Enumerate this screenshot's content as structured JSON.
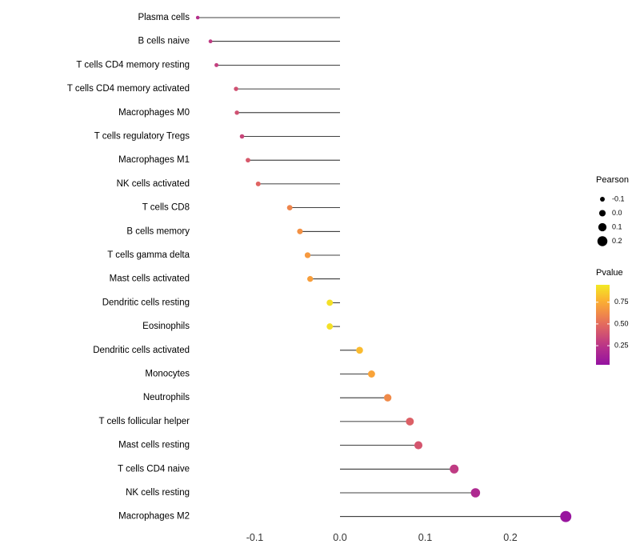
{
  "chart_data": {
    "type": "scatter",
    "subtype": "lollipop",
    "title": "",
    "xlabel": "",
    "ylabel": "",
    "xlim": [
      -0.185,
      0.3
    ],
    "grid": false,
    "legend_position": "right",
    "x_ticks": [
      -0.1,
      0.0,
      0.1,
      0.2
    ],
    "x_tick_labels": [
      "-0.1",
      "0.0",
      "0.1",
      "0.2"
    ],
    "stem_color": "#000000",
    "points": [
      {
        "label": "Plasma cells",
        "pearson": -0.167,
        "pvalue": 0.22
      },
      {
        "label": "B cells naive",
        "pearson": -0.152,
        "pvalue": 0.28
      },
      {
        "label": "T cells CD4 memory resting",
        "pearson": -0.145,
        "pvalue": 0.3
      },
      {
        "label": "T cells CD4 memory activated",
        "pearson": -0.122,
        "pvalue": 0.38
      },
      {
        "label": "Macrophages M0",
        "pearson": -0.121,
        "pvalue": 0.38
      },
      {
        "label": "T cells regulatory Tregs",
        "pearson": -0.115,
        "pvalue": 0.33
      },
      {
        "label": "Macrophages M1",
        "pearson": -0.108,
        "pvalue": 0.42
      },
      {
        "label": "NK cells activated",
        "pearson": -0.096,
        "pvalue": 0.47
      },
      {
        "label": "T cells CD8",
        "pearson": -0.059,
        "pvalue": 0.6
      },
      {
        "label": "B cells memory",
        "pearson": -0.047,
        "pvalue": 0.65
      },
      {
        "label": "T cells gamma delta",
        "pearson": -0.038,
        "pvalue": 0.68
      },
      {
        "label": "Mast cells activated",
        "pearson": -0.035,
        "pvalue": 0.7
      },
      {
        "label": "Dendritic cells resting",
        "pearson": -0.012,
        "pvalue": 0.92
      },
      {
        "label": "Eosinophils",
        "pearson": -0.012,
        "pvalue": 0.92
      },
      {
        "label": "Dendritic cells activated",
        "pearson": 0.023,
        "pvalue": 0.8
      },
      {
        "label": "Monocytes",
        "pearson": 0.037,
        "pvalue": 0.72
      },
      {
        "label": "Neutrophils",
        "pearson": 0.056,
        "pvalue": 0.62
      },
      {
        "label": "T cells follicular helper",
        "pearson": 0.082,
        "pvalue": 0.45
      },
      {
        "label": "Mast cells resting",
        "pearson": 0.092,
        "pvalue": 0.4
      },
      {
        "label": "T cells CD4 naive",
        "pearson": 0.134,
        "pvalue": 0.28
      },
      {
        "label": "NK cells resting",
        "pearson": 0.159,
        "pvalue": 0.18
      },
      {
        "label": "Macrophages M2",
        "pearson": 0.265,
        "pvalue": 0.05
      }
    ],
    "color_scale": {
      "name": "plasma",
      "stops": [
        {
          "t": 0.0,
          "color": "#8f0da4"
        },
        {
          "t": 0.25,
          "color": "#ba3488"
        },
        {
          "t": 0.5,
          "color": "#e56b5d"
        },
        {
          "t": 0.75,
          "color": "#fcab33"
        },
        {
          "t": 1.0,
          "color": "#f0f921"
        }
      ],
      "bar_range": [
        0.95,
        0.03
      ]
    },
    "legend": {
      "size": {
        "title": "Pearson",
        "values": [
          -0.1,
          0.0,
          0.1,
          0.2
        ],
        "labels": [
          "-0.1",
          "0.0",
          "0.1",
          "0.2"
        ],
        "dot_color": "#000000"
      },
      "color": {
        "title": "Pvalue",
        "ticks": [
          0.75,
          0.5,
          0.25
        ],
        "tick_labels": [
          "0.75",
          "0.50",
          "0.25"
        ]
      }
    },
    "text_color": "#000000",
    "axis_text_color": "#333333"
  }
}
